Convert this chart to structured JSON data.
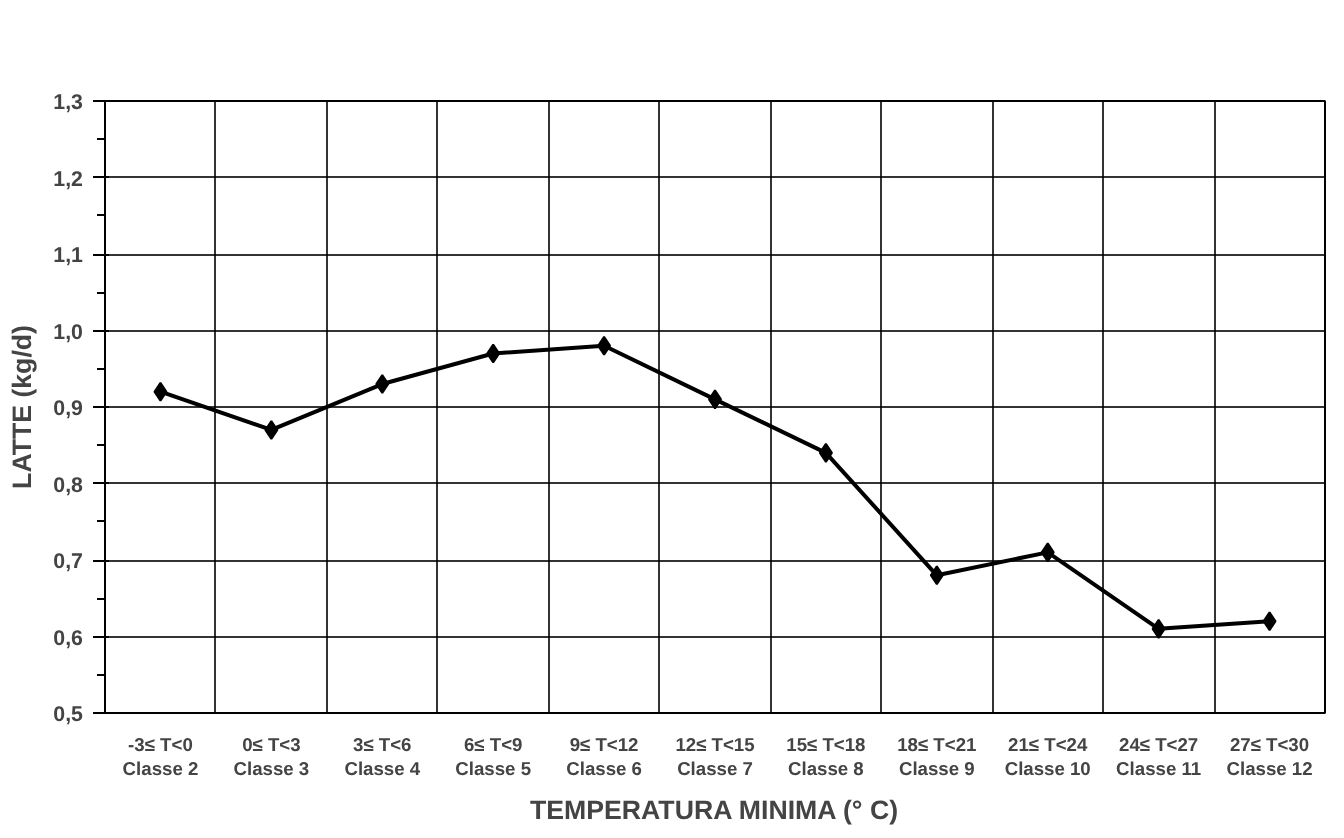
{
  "chart_data": {
    "type": "line",
    "xlabel": "TEMPERATURA MINIMA (° C)",
    "ylabel": "LATTE (kg/d)",
    "categories": [
      "-3≤ T<0\nClasse 2",
      "0≤ T<3\nClasse 3",
      "3≤ T<6\nClasse 4",
      "6≤ T<9\nClasse 5",
      "9≤ T<12\nClasse 6",
      "12≤ T<15\nClasse 7",
      "15≤ T<18\nClasse 8",
      "18≤ T<21\nClasse 9",
      "21≤ T<24\nClasse 10",
      "24≤ T<27\nClasse 11",
      "27≤ T<30\nClasse 12"
    ],
    "series": [
      {
        "color": "#000000",
        "values": [
          0.92,
          0.87,
          0.93,
          0.97,
          0.98,
          0.91,
          0.84,
          0.68,
          0.71,
          0.61,
          0.62
        ]
      }
    ],
    "ylim": [
      0.5,
      1.3
    ],
    "yticks": [
      {
        "value": 0.5,
        "label": "0,5"
      },
      {
        "value": 0.6,
        "label": "0,6"
      },
      {
        "value": 0.7,
        "label": "0,7"
      },
      {
        "value": 0.8,
        "label": "0,8"
      },
      {
        "value": 0.9,
        "label": "0,9"
      },
      {
        "value": 1.0,
        "label": "1,0"
      },
      {
        "value": 1.1,
        "label": "1,1"
      },
      {
        "value": 1.2,
        "label": "1,2"
      },
      {
        "value": 1.3,
        "label": "1,3"
      }
    ],
    "grid": true,
    "marker": "diamond",
    "line_style": "solid"
  }
}
